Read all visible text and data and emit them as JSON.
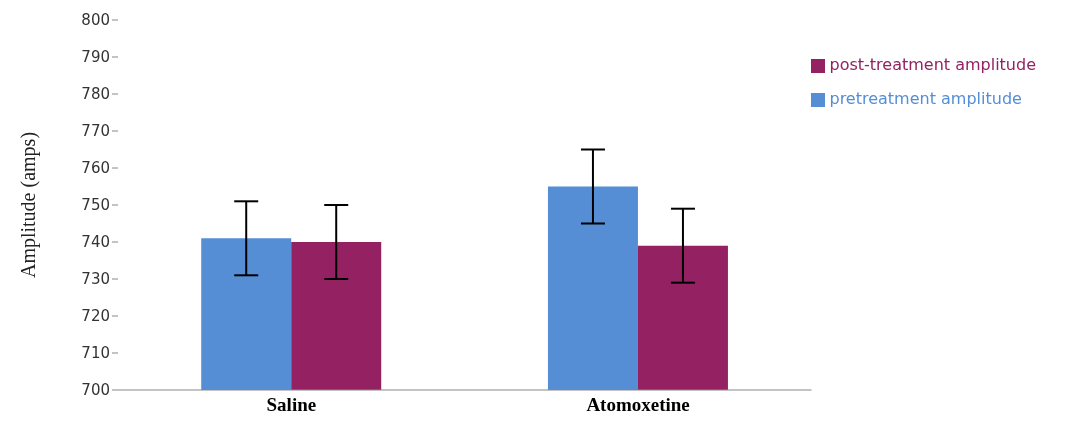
{
  "chart_data": {
    "type": "bar",
    "ylabel": "Amplitude (amps)",
    "categories": [
      "Saline",
      "Atomoxetine"
    ],
    "series": [
      {
        "name": "pretreatment amplitude",
        "color": "#558ed5",
        "values": [
          741,
          755
        ],
        "errors": [
          10,
          10
        ]
      },
      {
        "name": "post-treatment amplitude",
        "color": "#942262",
        "values": [
          740,
          739
        ],
        "errors": [
          10,
          10
        ]
      }
    ],
    "ylim": [
      700,
      800
    ],
    "yticks": [
      700,
      710,
      720,
      730,
      740,
      750,
      760,
      770,
      780,
      790,
      800
    ],
    "grid": false,
    "legend": "top right"
  }
}
